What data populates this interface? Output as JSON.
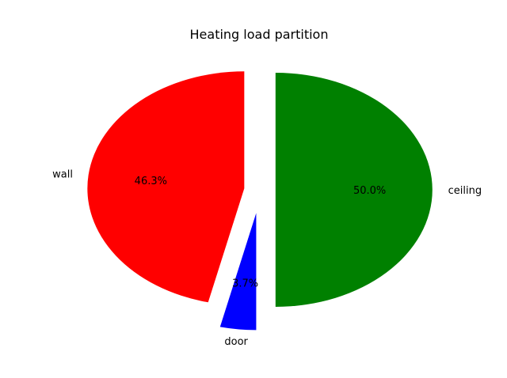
{
  "chart_data": {
    "type": "pie",
    "title": "Heating load partition",
    "slices": [
      {
        "label": "wall",
        "value": 46.3,
        "pct_label": "46.3%",
        "color": "#ff0000",
        "explode": 0.1
      },
      {
        "label": "door",
        "value": 3.7,
        "pct_label": "3.7%",
        "color": "#0000ff",
        "explode": 0.2
      },
      {
        "label": "ceiling",
        "value": 50.0,
        "pct_label": "50.0%",
        "color": "#008000",
        "explode": 0.1
      }
    ],
    "start_angle_deg": 90,
    "direction": "counterclockwise"
  }
}
